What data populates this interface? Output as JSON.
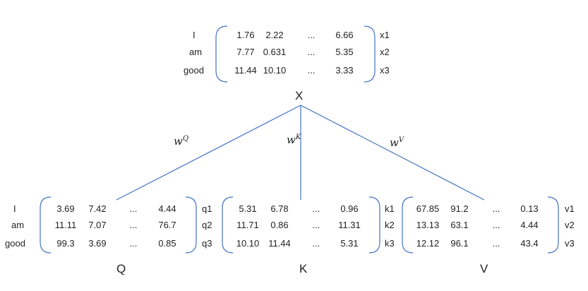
{
  "tokens": [
    "I",
    "am",
    "good"
  ],
  "x_matrix": {
    "label": "X",
    "rows": [
      {
        "token": "I",
        "values": [
          "1.76",
          "2.22",
          "...",
          "6.66"
        ],
        "name": "x1"
      },
      {
        "token": "am",
        "values": [
          "7.77",
          "0.631",
          "...",
          "5.35"
        ],
        "name": "x2"
      },
      {
        "token": "good",
        "values": [
          "11.44",
          "10.10",
          "...",
          "3.33"
        ],
        "name": "x3"
      }
    ]
  },
  "weights": {
    "q": {
      "base": "w",
      "sup": "Q"
    },
    "k": {
      "base": "w",
      "sup": "K"
    },
    "v": {
      "base": "w",
      "sup": "V"
    }
  },
  "q_matrix": {
    "label": "Q",
    "rows": [
      {
        "values": [
          "3.69",
          "7.42",
          "...",
          "4.44"
        ],
        "name": "q1"
      },
      {
        "values": [
          "11.11",
          "7.07",
          "...",
          "76.7"
        ],
        "name": "q2"
      },
      {
        "values": [
          "99.3",
          "3.69",
          "...",
          "0.85"
        ],
        "name": "q3"
      }
    ]
  },
  "k_matrix": {
    "label": "K",
    "rows": [
      {
        "values": [
          "5.31",
          "6.78",
          "...",
          "0.96"
        ],
        "name": "k1"
      },
      {
        "values": [
          "11.71",
          "0.86",
          "...",
          "11.31"
        ],
        "name": "k2"
      },
      {
        "values": [
          "10.10",
          "11.44",
          "...",
          "5.31"
        ],
        "name": "k3"
      }
    ]
  },
  "v_matrix": {
    "label": "V",
    "rows": [
      {
        "values": [
          "67.85",
          "91.2",
          "...",
          "0.13"
        ],
        "name": "v1"
      },
      {
        "values": [
          "13.13",
          "63.1",
          "...",
          "4.44"
        ],
        "name": "v2"
      },
      {
        "values": [
          "12.12",
          "96.1",
          "...",
          "43.4"
        ],
        "name": "v3"
      }
    ]
  },
  "colors": {
    "line": "#4472c4",
    "bracket": "#4472c4",
    "text": "#222222"
  }
}
